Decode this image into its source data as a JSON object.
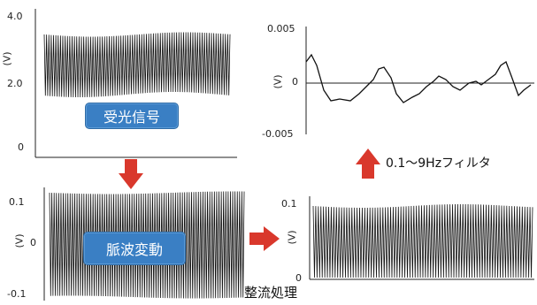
{
  "colors": {
    "arrow": "#d9382c",
    "badge": "#3a7fc4",
    "wave": "#111111"
  },
  "panels": {
    "received": {
      "unit": "(V)",
      "ticks": [
        "4.0",
        "2.0",
        "0"
      ],
      "badge": "受光信号"
    },
    "pulse": {
      "unit": "(V)",
      "ticks": [
        "0.1",
        "0",
        "-0.1"
      ],
      "badge": "脈波変動"
    },
    "filtered": {
      "unit": "(V)",
      "ticks": [
        "0.005",
        "0",
        "-0.005"
      ]
    },
    "rectified": {
      "unit": "(V)",
      "ticks": [
        "0.1",
        "0"
      ]
    }
  },
  "captions": {
    "filter": "0.1～9Hzフィルタ",
    "rectify": "整流処理"
  },
  "arrows": {
    "down": "arrow-down-icon",
    "right": "arrow-right-icon",
    "up": "arrow-up-icon"
  }
}
